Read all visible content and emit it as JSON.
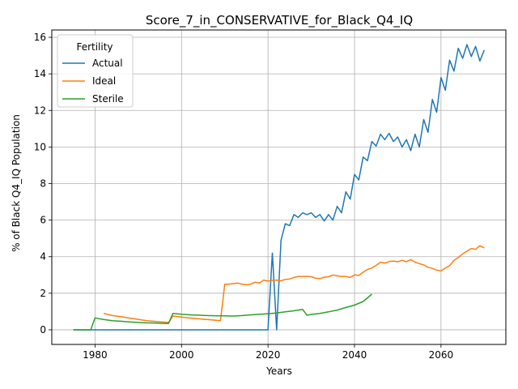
{
  "chart_data": {
    "type": "line",
    "title": "Score_7_in_CONSERVATIVE_for_Black_Q4_IQ",
    "xlabel": "Years",
    "ylabel": "% of Black Q4_IQ Population",
    "xlim": [
      1970,
      2075
    ],
    "ylim": [
      -0.8,
      16.4
    ],
    "xticks": [
      1980,
      2000,
      2020,
      2040,
      2060
    ],
    "yticks": [
      0,
      2,
      4,
      6,
      8,
      10,
      12,
      14,
      16
    ],
    "grid": true,
    "legend": {
      "title": "Fertility",
      "placement": "top-left"
    },
    "series": [
      {
        "name": "Actual",
        "color": "#1f77b4",
        "points": [
          [
            1975,
            0
          ],
          [
            1980,
            0
          ],
          [
            1990,
            0
          ],
          [
            2000,
            0
          ],
          [
            2010,
            0
          ],
          [
            2020,
            0
          ],
          [
            2021,
            4.2
          ],
          [
            2022,
            0
          ],
          [
            2023,
            4.9
          ],
          [
            2024,
            5.8
          ],
          [
            2025,
            5.7
          ],
          [
            2026,
            6.3
          ],
          [
            2027,
            6.15
          ],
          [
            2028,
            6.4
          ],
          [
            2029,
            6.3
          ],
          [
            2030,
            6.4
          ],
          [
            2031,
            6.15
          ],
          [
            2032,
            6.3
          ],
          [
            2033,
            5.95
          ],
          [
            2034,
            6.3
          ],
          [
            2035,
            6.0
          ],
          [
            2036,
            6.75
          ],
          [
            2037,
            6.4
          ],
          [
            2038,
            7.55
          ],
          [
            2039,
            7.15
          ],
          [
            2040,
            8.5
          ],
          [
            2041,
            8.2
          ],
          [
            2042,
            9.45
          ],
          [
            2043,
            9.25
          ],
          [
            2044,
            10.3
          ],
          [
            2045,
            10.05
          ],
          [
            2046,
            10.7
          ],
          [
            2047,
            10.4
          ],
          [
            2048,
            10.75
          ],
          [
            2049,
            10.3
          ],
          [
            2050,
            10.55
          ],
          [
            2051,
            10.0
          ],
          [
            2052,
            10.4
          ],
          [
            2053,
            9.8
          ],
          [
            2054,
            10.7
          ],
          [
            2055,
            10.0
          ],
          [
            2056,
            11.5
          ],
          [
            2057,
            10.8
          ],
          [
            2058,
            12.6
          ],
          [
            2059,
            11.9
          ],
          [
            2060,
            13.8
          ],
          [
            2061,
            13.1
          ],
          [
            2062,
            14.75
          ],
          [
            2063,
            14.15
          ],
          [
            2064,
            15.4
          ],
          [
            2065,
            14.85
          ],
          [
            2066,
            15.6
          ],
          [
            2067,
            14.95
          ],
          [
            2068,
            15.5
          ],
          [
            2069,
            14.7
          ],
          [
            2070,
            15.3
          ]
        ]
      },
      {
        "name": "Ideal",
        "color": "#ff7f0e",
        "points": [
          [
            1982,
            0.9
          ],
          [
            1984,
            0.78
          ],
          [
            1986,
            0.72
          ],
          [
            1988,
            0.64
          ],
          [
            1990,
            0.57
          ],
          [
            1992,
            0.5
          ],
          [
            1994,
            0.46
          ],
          [
            1996,
            0.42
          ],
          [
            1997,
            0.4
          ],
          [
            1998,
            0.75
          ],
          [
            2000,
            0.7
          ],
          [
            2002,
            0.64
          ],
          [
            2004,
            0.6
          ],
          [
            2006,
            0.56
          ],
          [
            2008,
            0.52
          ],
          [
            2009,
            0.5
          ],
          [
            2010,
            2.5
          ],
          [
            2011,
            2.5
          ],
          [
            2012,
            2.53
          ],
          [
            2013,
            2.55
          ],
          [
            2014,
            2.5
          ],
          [
            2015,
            2.47
          ],
          [
            2016,
            2.5
          ],
          [
            2017,
            2.6
          ],
          [
            2018,
            2.56
          ],
          [
            2019,
            2.72
          ],
          [
            2020,
            2.66
          ],
          [
            2021,
            2.7
          ],
          [
            2022,
            2.72
          ],
          [
            2023,
            2.68
          ],
          [
            2024,
            2.76
          ],
          [
            2025,
            2.78
          ],
          [
            2026,
            2.86
          ],
          [
            2027,
            2.92
          ],
          [
            2028,
            2.92
          ],
          [
            2029,
            2.92
          ],
          [
            2030,
            2.9
          ],
          [
            2031,
            2.82
          ],
          [
            2032,
            2.8
          ],
          [
            2033,
            2.88
          ],
          [
            2034,
            2.9
          ],
          [
            2035,
            3.0
          ],
          [
            2036,
            2.95
          ],
          [
            2037,
            2.92
          ],
          [
            2038,
            2.92
          ],
          [
            2039,
            2.86
          ],
          [
            2040,
            3.0
          ],
          [
            2041,
            2.98
          ],
          [
            2042,
            3.15
          ],
          [
            2043,
            3.3
          ],
          [
            2044,
            3.38
          ],
          [
            2045,
            3.52
          ],
          [
            2046,
            3.7
          ],
          [
            2047,
            3.65
          ],
          [
            2048,
            3.73
          ],
          [
            2049,
            3.76
          ],
          [
            2050,
            3.72
          ],
          [
            2051,
            3.8
          ],
          [
            2052,
            3.72
          ],
          [
            2053,
            3.84
          ],
          [
            2054,
            3.7
          ],
          [
            2055,
            3.62
          ],
          [
            2056,
            3.55
          ],
          [
            2057,
            3.42
          ],
          [
            2058,
            3.36
          ],
          [
            2059,
            3.27
          ],
          [
            2060,
            3.22
          ],
          [
            2061,
            3.38
          ],
          [
            2062,
            3.5
          ],
          [
            2063,
            3.8
          ],
          [
            2064,
            3.95
          ],
          [
            2065,
            4.15
          ],
          [
            2066,
            4.3
          ],
          [
            2067,
            4.45
          ],
          [
            2068,
            4.4
          ],
          [
            2069,
            4.6
          ],
          [
            2070,
            4.48
          ]
        ]
      },
      {
        "name": "Sterile",
        "color": "#2ca02c",
        "points": [
          [
            1975,
            0
          ],
          [
            1979,
            0
          ],
          [
            1980,
            0.65
          ],
          [
            1982,
            0.56
          ],
          [
            1984,
            0.5
          ],
          [
            1986,
            0.47
          ],
          [
            1988,
            0.43
          ],
          [
            1990,
            0.4
          ],
          [
            1992,
            0.38
          ],
          [
            1994,
            0.37
          ],
          [
            1996,
            0.35
          ],
          [
            1997,
            0.35
          ],
          [
            1998,
            0.9
          ],
          [
            2000,
            0.85
          ],
          [
            2002,
            0.82
          ],
          [
            2004,
            0.8
          ],
          [
            2006,
            0.78
          ],
          [
            2008,
            0.77
          ],
          [
            2010,
            0.76
          ],
          [
            2012,
            0.75
          ],
          [
            2014,
            0.78
          ],
          [
            2016,
            0.82
          ],
          [
            2018,
            0.85
          ],
          [
            2020,
            0.88
          ],
          [
            2022,
            0.92
          ],
          [
            2024,
            0.98
          ],
          [
            2026,
            1.04
          ],
          [
            2028,
            1.12
          ],
          [
            2029,
            0.8
          ],
          [
            2030,
            0.84
          ],
          [
            2032,
            0.9
          ],
          [
            2034,
            0.98
          ],
          [
            2036,
            1.08
          ],
          [
            2038,
            1.22
          ],
          [
            2040,
            1.35
          ],
          [
            2042,
            1.55
          ],
          [
            2044,
            1.95
          ]
        ]
      }
    ]
  }
}
